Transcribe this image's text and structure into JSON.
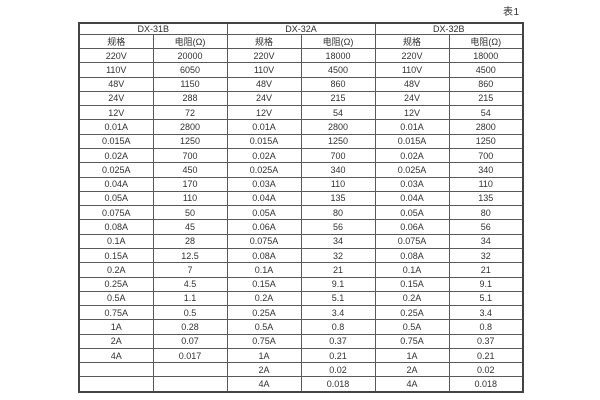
{
  "caption": "表1",
  "table": {
    "groups": [
      {
        "label": "DX-31B"
      },
      {
        "label": "DX-32A"
      },
      {
        "label": "DX-32B"
      }
    ],
    "sub_headers": [
      "规格",
      "电阻(Ω)",
      "规格",
      "电阻(Ω)",
      "规格",
      "电阻(Ω)"
    ],
    "rows": [
      [
        "220V",
        "20000",
        "220V",
        "18000",
        "220V",
        "18000"
      ],
      [
        "110V",
        "6050",
        "110V",
        "4500",
        "110V",
        "4500"
      ],
      [
        "48V",
        "1150",
        "48V",
        "860",
        "48V",
        "860"
      ],
      [
        "24V",
        "288",
        "24V",
        "215",
        "24V",
        "215"
      ],
      [
        "12V",
        "72",
        "12V",
        "54",
        "12V",
        "54"
      ],
      [
        "0.01A",
        "2800",
        "0.01A",
        "2800",
        "0.01A",
        "2800"
      ],
      [
        "0.015A",
        "1250",
        "0.015A",
        "1250",
        "0.015A",
        "1250"
      ],
      [
        "0.02A",
        "700",
        "0.02A",
        "700",
        "0.02A",
        "700"
      ],
      [
        "0.025A",
        "450",
        "0.025A",
        "340",
        "0.025A",
        "340"
      ],
      [
        "0.04A",
        "170",
        "0.03A",
        "110",
        "0.03A",
        "110"
      ],
      [
        "0.05A",
        "110",
        "0.04A",
        "135",
        "0.04A",
        "135"
      ],
      [
        "0.075A",
        "50",
        "0.05A",
        "80",
        "0.05A",
        "80"
      ],
      [
        "0.08A",
        "45",
        "0.06A",
        "56",
        "0.06A",
        "56"
      ],
      [
        "0.1A",
        "28",
        "0.075A",
        "34",
        "0.075A",
        "34"
      ],
      [
        "0.15A",
        "12.5",
        "0.08A",
        "32",
        "0.08A",
        "32"
      ],
      [
        "0.2A",
        "7",
        "0.1A",
        "21",
        "0.1A",
        "21"
      ],
      [
        "0.25A",
        "4.5",
        "0.15A",
        "9.1",
        "0.15A",
        "9.1"
      ],
      [
        "0.5A",
        "1.1",
        "0.2A",
        "5.1",
        "0.2A",
        "5.1"
      ],
      [
        "0.75A",
        "0.5",
        "0.25A",
        "3.4",
        "0.25A",
        "3.4"
      ],
      [
        "1A",
        "0.28",
        "0.5A",
        "0.8",
        "0.5A",
        "0.8"
      ],
      [
        "2A",
        "0.07",
        "0.75A",
        "0.37",
        "0.75A",
        "0.37"
      ],
      [
        "4A",
        "0.017",
        "1A",
        "0.21",
        "1A",
        "0.21"
      ],
      [
        "",
        "",
        "2A",
        "0.02",
        "2A",
        "0.02"
      ],
      [
        "",
        "",
        "4A",
        "0.018",
        "4A",
        "0.018"
      ]
    ],
    "colors": {
      "border_outer": "#444444",
      "border_inner": "#5a5a5a",
      "text": "#333333",
      "background": "#ffffff"
    }
  }
}
